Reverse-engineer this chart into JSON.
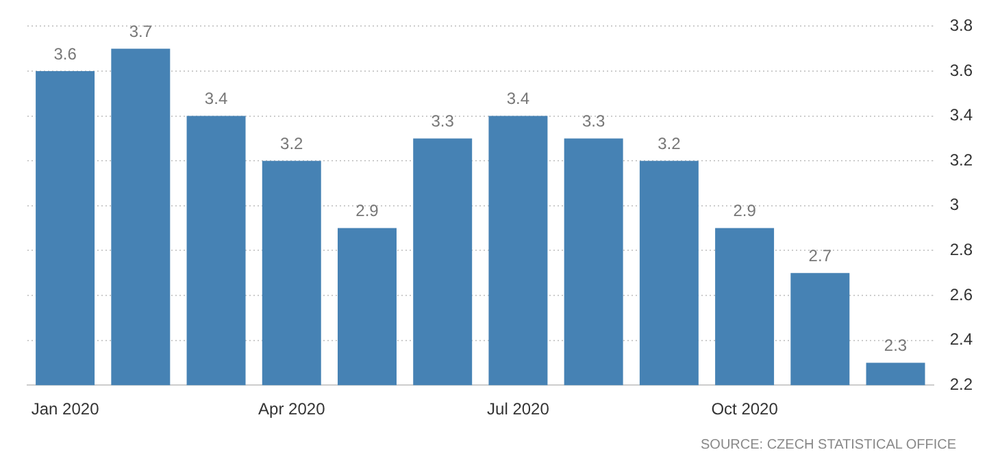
{
  "chart_data": {
    "type": "bar",
    "categories": [
      "Jan 2020",
      null,
      null,
      "Apr 2020",
      null,
      null,
      "Jul 2020",
      null,
      null,
      "Oct 2020",
      null,
      null
    ],
    "values": [
      3.6,
      3.7,
      3.4,
      3.2,
      2.9,
      3.3,
      3.4,
      3.3,
      3.2,
      2.9,
      2.7,
      2.3
    ],
    "color": "#4682b4",
    "ylim": [
      2.2,
      3.8
    ],
    "yticks": [
      2.2,
      2.4,
      2.6,
      2.8,
      3,
      3.2,
      3.4,
      3.6,
      3.8
    ],
    "grid": "y",
    "data_labels": true,
    "legend": false,
    "annotations": [
      "SOURCE: CZECH STATISTICAL OFFICE"
    ]
  }
}
